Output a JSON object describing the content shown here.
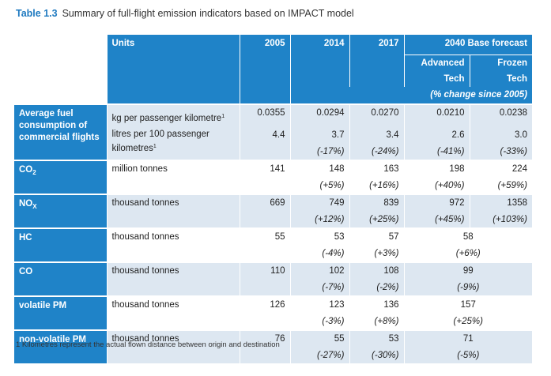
{
  "caption": {
    "tag": "Table 1.3",
    "title": "Summary of full-flight emission indicators based on IMPACT model"
  },
  "header": {
    "units": "Units",
    "y2005": "2005",
    "y2014": "2014",
    "y2017": "2017",
    "forecast": "2040 Base forecast",
    "advanced": "Advanced Tech",
    "frozen": "Frozen Tech",
    "change_note": "(% change since 2005)"
  },
  "rows": {
    "fuel": {
      "label": "Average fuel consumption of commercial flights",
      "unit1": "kg per passenger kilometre",
      "unit1_sup": "1",
      "unit2": "litres per 100 passenger kilometres",
      "unit2_sup": "1",
      "v2005a": "0.0355",
      "v2014a": "0.0294",
      "v2017a": "0.0270",
      "advA": "0.0210",
      "frozA": "0.0238",
      "v2005b": "4.4",
      "v2014b": "3.7",
      "v2017b": "3.4",
      "advB": "2.6",
      "frozB": "3.0",
      "p2014": "(-17%)",
      "p2017": "(-24%)",
      "pAdv": "(-41%)",
      "pFroz": "(-33%)"
    },
    "co2": {
      "label_main": "CO",
      "label_sub": "2",
      "unit": "million tonnes",
      "v2005": "141",
      "v2014": "148",
      "v2017": "163",
      "adv": "198",
      "froz": "224",
      "p2014": "(+5%)",
      "p2017": "(+16%)",
      "pAdv": "(+40%)",
      "pFroz": "(+59%)"
    },
    "nox": {
      "label_main": "NO",
      "label_sub": "X",
      "unit": "thousand tonnes",
      "v2005": "669",
      "v2014": "749",
      "v2017": "839",
      "adv": "972",
      "froz": "1358",
      "p2014": "(+12%)",
      "p2017": "(+25%)",
      "pAdv": "(+45%)",
      "pFroz": "(+103%)"
    },
    "hc": {
      "label": "HC",
      "unit": "thousand tonnes",
      "v2005": "55",
      "v2014": "53",
      "v2017": "57",
      "v2040": "58",
      "p2014": "(-4%)",
      "p2017": "(+3%)",
      "p2040": "(+6%)"
    },
    "co": {
      "label": "CO",
      "unit": "thousand tonnes",
      "v2005": "110",
      "v2014": "102",
      "v2017": "108",
      "v2040": "99",
      "p2014": "(-7%)",
      "p2017": "(-2%)",
      "p2040": "(-9%)"
    },
    "vpm": {
      "label": "volatile PM",
      "unit": "thousand tonnes",
      "v2005": "126",
      "v2014": "123",
      "v2017": "136",
      "v2040": "157",
      "p2014": "(-3%)",
      "p2017": "(+8%)",
      "p2040": "(+25%)"
    },
    "nvpm": {
      "label": "non-volatile PM",
      "unit": "thousand tonnes",
      "v2005": "76",
      "v2014": "55",
      "v2017": "53",
      "v2040": "71",
      "p2014": "(-27%)",
      "p2017": "(-30%)",
      "p2040": "(-5%)"
    }
  },
  "footnote": "1  Kilometres represent the actual flown distance between origin and destination",
  "colors": {
    "header_blue": "#1f83c8",
    "row_tint": "#dde7f1",
    "caption_tag": "#1f7ac0"
  }
}
